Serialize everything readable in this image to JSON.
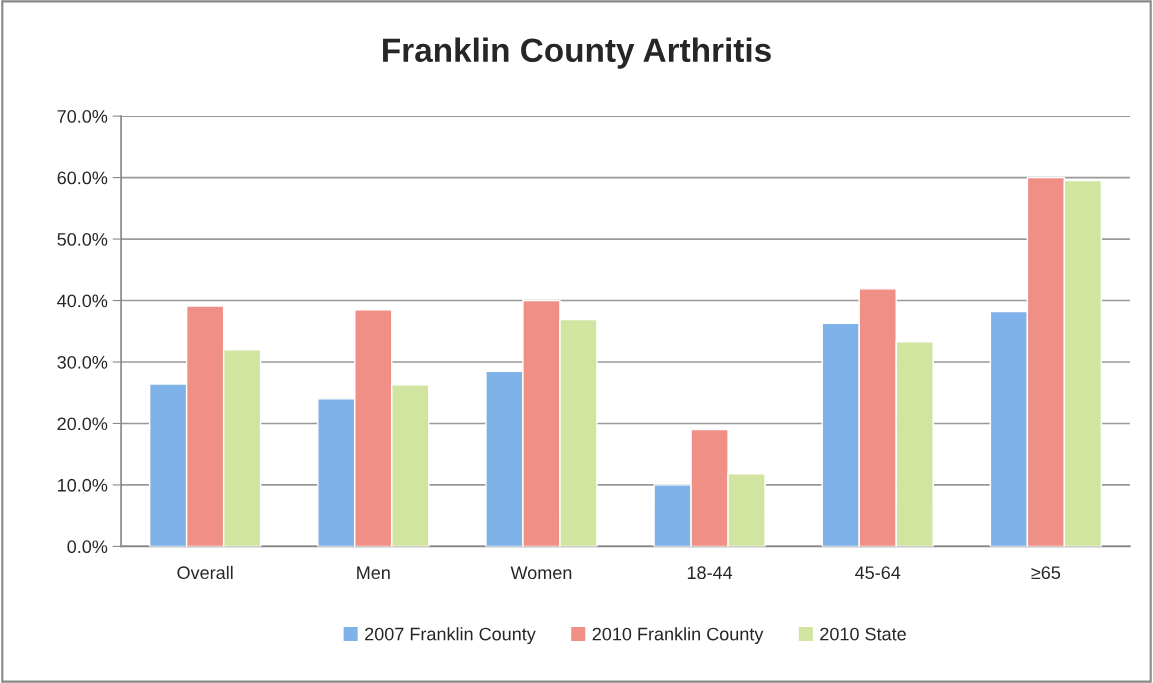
{
  "chart_data": {
    "type": "bar",
    "title": "Franklin County Arthritis",
    "categories": [
      "Overall",
      "Men",
      "Women",
      "18-44",
      "45-64",
      "≥65"
    ],
    "series": [
      {
        "name": "2007 Franklin County",
        "color": "#7fb2e8",
        "values": [
          26.4,
          24.0,
          28.5,
          10.0,
          36.3,
          38.2
        ]
      },
      {
        "name": "2010 Franklin County",
        "color": "#ef8f86",
        "values": [
          39.1,
          38.5,
          40.0,
          19.0,
          41.9,
          60.0
        ]
      },
      {
        "name": "2010 State",
        "color": "#d2e5a0",
        "values": [
          32.0,
          26.3,
          36.9,
          11.8,
          33.3,
          59.5
        ]
      }
    ],
    "ylim": [
      0,
      70
    ],
    "yticks": [
      {
        "value": 0,
        "label": "0.0%"
      },
      {
        "value": 10,
        "label": "10.0%"
      },
      {
        "value": 20,
        "label": "20.0%"
      },
      {
        "value": 30,
        "label": "30.0%"
      },
      {
        "value": 40,
        "label": "40.0%"
      },
      {
        "value": 50,
        "label": "50.0%"
      },
      {
        "value": 60,
        "label": "60.0%"
      },
      {
        "value": 70,
        "label": "70.0%"
      }
    ],
    "grid": "y",
    "legend": "bottom"
  }
}
